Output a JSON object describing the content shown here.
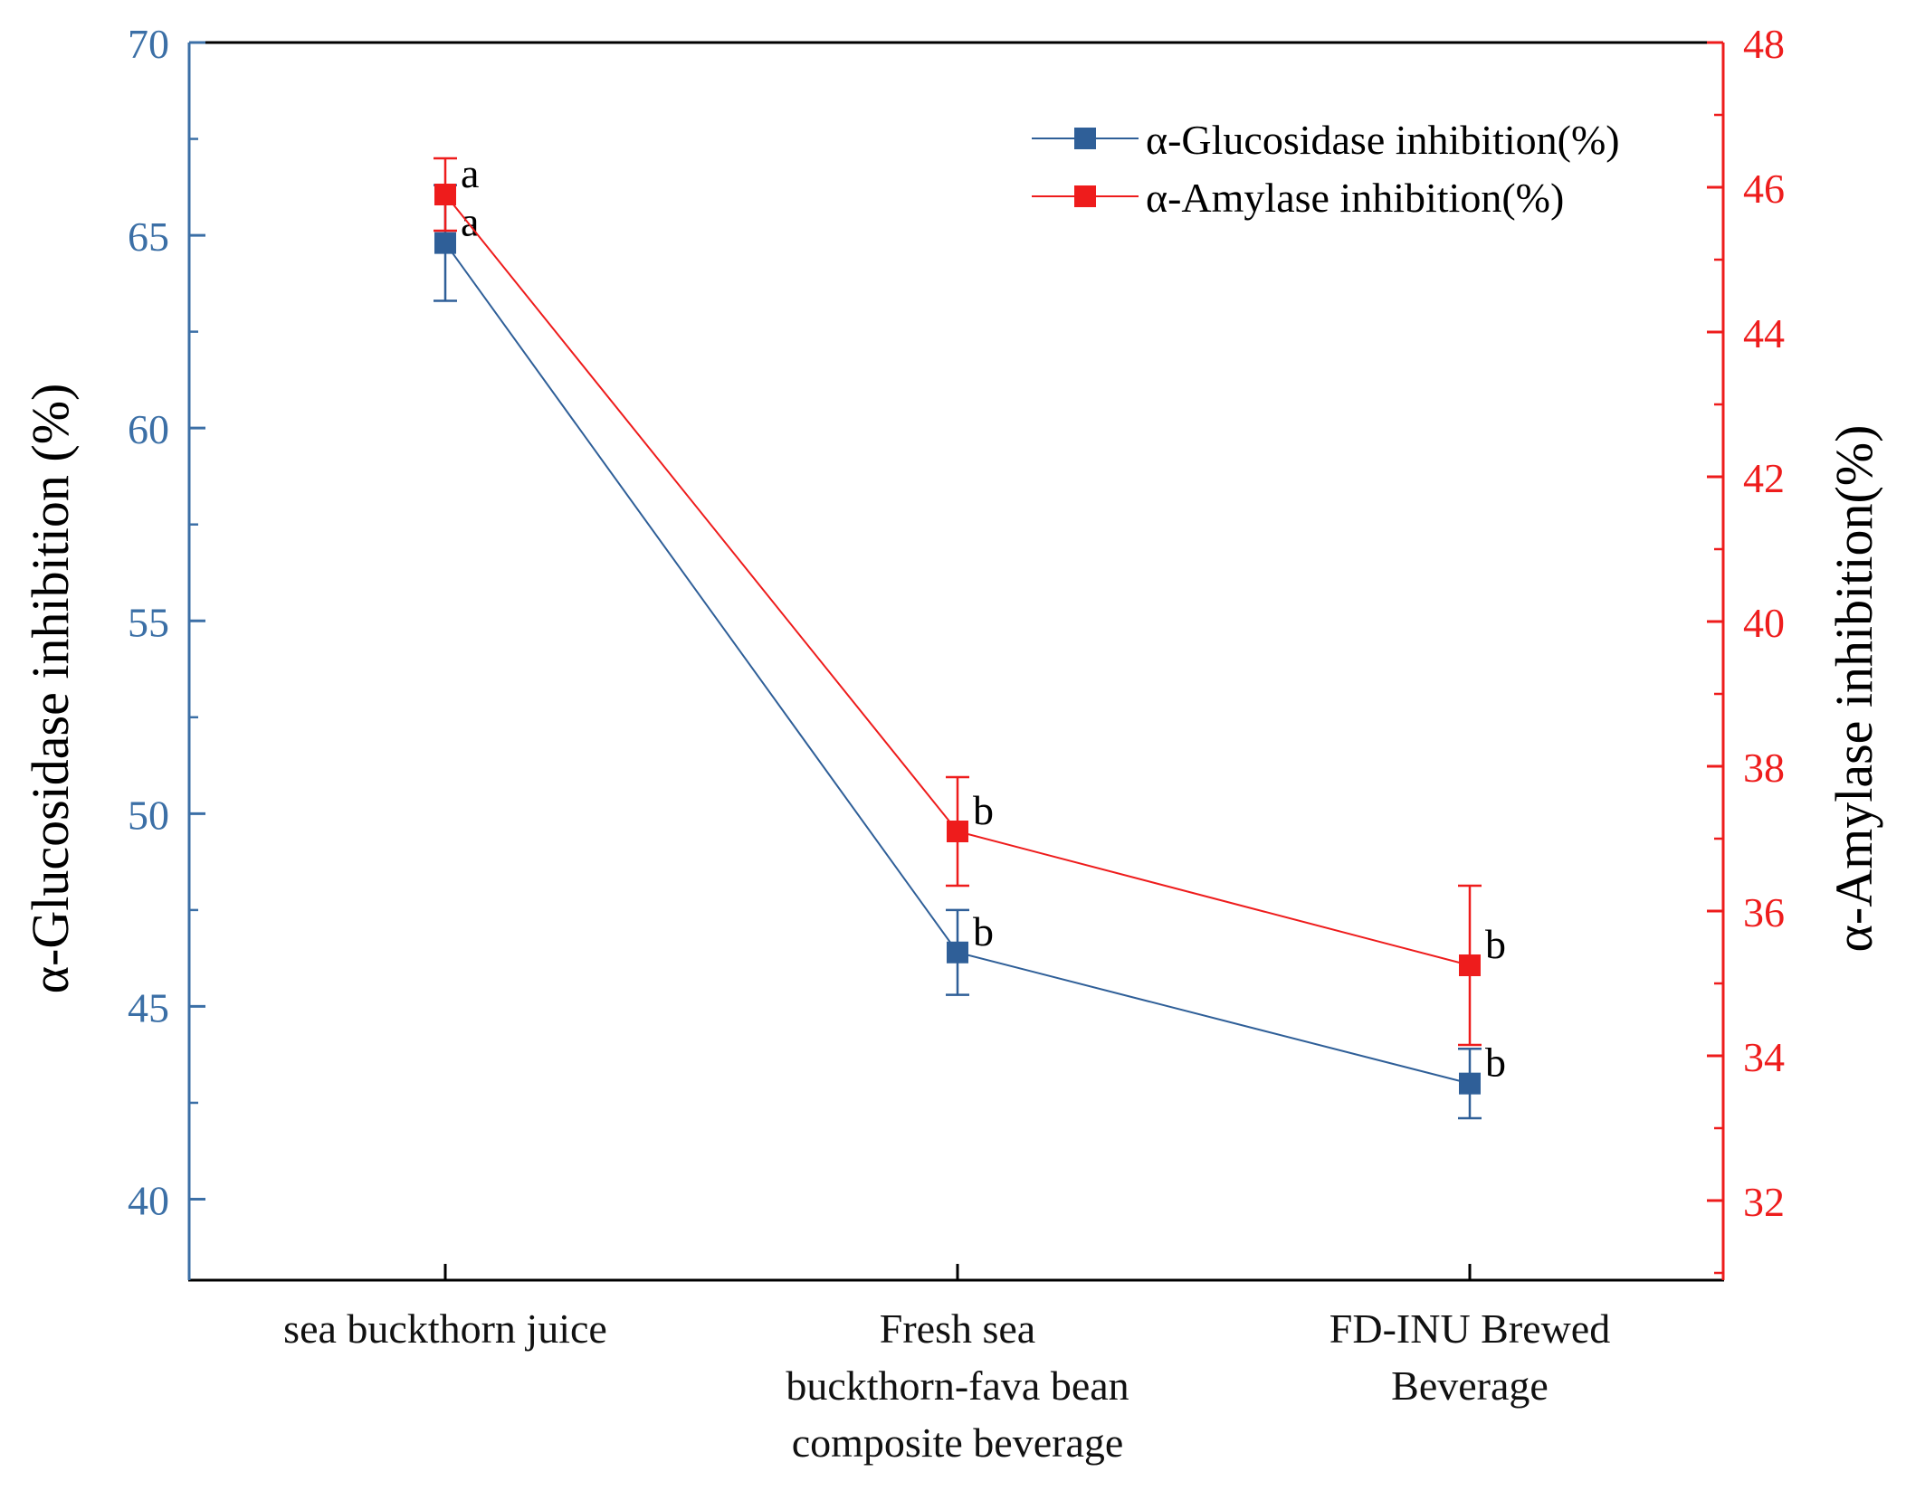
{
  "chart_data": {
    "type": "line",
    "categories": [
      [
        "sea buckthorn juice"
      ],
      [
        "Fresh sea",
        "buckthorn-fava bean",
        "composite beverage"
      ],
      [
        "FD-INU Brewed",
        "Beverage"
      ]
    ],
    "y_left": {
      "label": "α-Glucosidase inhibition (%)",
      "min": 37.9,
      "max": 70,
      "ticks": [
        40,
        45,
        50,
        55,
        60,
        65,
        70
      ],
      "color": "#3b6fa6"
    },
    "y_right": {
      "label": "α-Amylase inhibition(%)",
      "min": 30.9,
      "max": 48,
      "ticks": [
        32,
        34,
        36,
        38,
        40,
        42,
        44,
        46,
        48
      ],
      "color": "#ee1c1c"
    },
    "series": [
      {
        "name": "α-Glucosidase inhibition(%)",
        "axis": "left",
        "color": "#2f5f98",
        "values": [
          64.8,
          46.4,
          43.0
        ],
        "errors": [
          1.5,
          1.1,
          0.9
        ],
        "letters": [
          "a",
          "b",
          "b"
        ]
      },
      {
        "name": "α-Amylase inhibition(%)",
        "axis": "right",
        "color": "#ee1c1c",
        "values": [
          45.9,
          37.1,
          35.25
        ],
        "errors": [
          0.5,
          0.75,
          1.1
        ],
        "letters": [
          "a",
          "b",
          "b"
        ]
      }
    ],
    "legend": {
      "position": "top-right",
      "entries": [
        "α-Glucosidase inhibition(%)",
        "α-Amylase inhibition(%)"
      ]
    }
  }
}
